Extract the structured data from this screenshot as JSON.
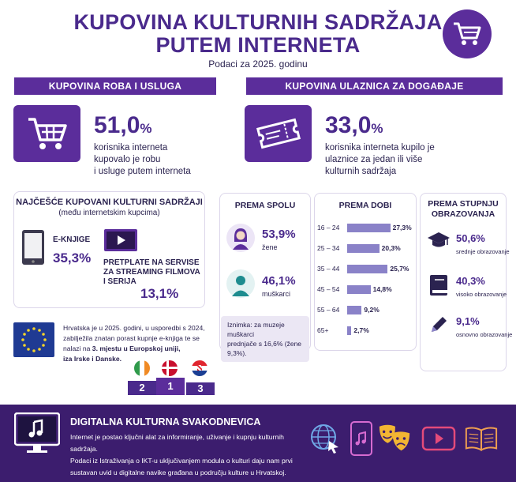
{
  "header": {
    "title_line1": "KUPOVINA KULTURNIH SADRŽAJA",
    "title_line2": "PUTEM INTERNETA",
    "subtitle": "Podaci za 2025. godinu",
    "icon": "shopping-cart-icon"
  },
  "goods": {
    "heading": "KUPOVINA ROBA I USLUGA",
    "pct_num": "51,0",
    "pct_sym": "%",
    "desc": [
      "korisnika interneta",
      "kupovalo je robu",
      "i usluge putem interneta"
    ],
    "icon": "shopping-cart-icon"
  },
  "tickets": {
    "heading": "KUPOVINA ULAZNICA ZA DOGAĐAJE",
    "pct_num": "33,0",
    "pct_sym": "%",
    "desc": [
      "korisnika interneta kupilo je",
      "ulaznice za jedan ili više",
      "kulturnih sadržaja"
    ],
    "icon": "ticket-icon"
  },
  "most_bought": {
    "heading": "NAJČEŠĆE KUPOVANI KULTURNI SADRŽAJI",
    "subheading": "(među internetskim kupcima)",
    "ebooks_label": "E-KNJIGE",
    "ebooks_value": "35,3%",
    "streaming_label_l1": "PRETPLATE NA SERVISE",
    "streaming_label_l2": "ZA STREAMING FILMOVA",
    "streaming_label_l3": "I SERIJA",
    "streaming_value": "13,1%"
  },
  "eu": {
    "line1": "Hrvatska je u 2025. godini, u usporedbi s 2024,",
    "line2": "zabilježila znatan porast kupnje e-knjiga te se",
    "line3_pre": "nalazi na ",
    "line3_bold": "3. mjestu u Europskoj uniji,",
    "line4": "iza Irske i Danske.",
    "podium": [
      "2",
      "1",
      "3"
    ]
  },
  "gender": {
    "heading": "PREMA SPOLU",
    "women_value": "53,9%",
    "women_label": "žene",
    "men_value": "46,1%",
    "men_label": "muškarci",
    "note_line1": "Iznimka: za muzeje muškarci",
    "note_line2": "prednjače s 16,6% (žene 9,3%)."
  },
  "age": {
    "heading": "PREMA DOBI",
    "rows": [
      {
        "label": "16 – 24",
        "value": 27.3,
        "text": "27,3%"
      },
      {
        "label": "25 – 34",
        "value": 20.3,
        "text": "20,3%"
      },
      {
        "label": "35 – 44",
        "value": 25.7,
        "text": "25,7%"
      },
      {
        "label": "45 – 54",
        "value": 14.8,
        "text": "14,8%"
      },
      {
        "label": "55 – 64",
        "value": 9.2,
        "text": "9,2%"
      },
      {
        "label": "65+",
        "value": 2.7,
        "text": "2,7%"
      }
    ]
  },
  "education": {
    "heading_l1": "PREMA STUPNJU",
    "heading_l2": "OBRAZOVANJA",
    "rows": [
      {
        "value": "50,6%",
        "label": "srednje obrazovanje",
        "icon": "graduation-cap-icon"
      },
      {
        "value": "40,3%",
        "label": "visoko obrazovanje",
        "icon": "book-icon"
      },
      {
        "value": "9,1%",
        "label": "osnovno obrazovanje",
        "icon": "pencil-icon"
      }
    ]
  },
  "footer": {
    "title": "DIGITALNA KULTURNA SVAKODNEVICA",
    "line1": "Internet je postao ključni alat za informiranje, uživanje i kupnju kulturnih sadržaja.",
    "line2": "Podaci iz Istraživanja o IKT-u uključivanjem modula o kulturi daju nam prvi",
    "line3": "sustavan uvid u digitalne navike građana u području kulture u Hrvatskoj.",
    "icons": [
      "monitor-music-icon",
      "globe-cursor-icon",
      "phone-music-icon",
      "theatre-masks-icon",
      "video-play-icon",
      "open-book-icon"
    ]
  },
  "colors": {
    "primary": "#5b2d9b",
    "dark": "#3c1d6e",
    "bar": "#8a82c8"
  }
}
